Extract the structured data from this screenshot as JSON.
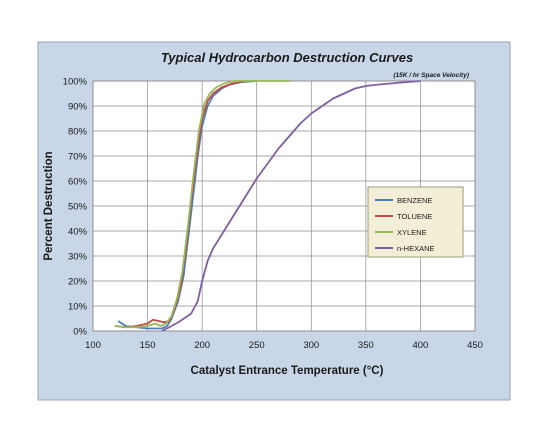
{
  "chart_data": {
    "type": "line",
    "title": "Typical Hydrocarbon Destruction Curves",
    "subtitle": "(15K / hr  Space Velocity)",
    "xlabel": "Catalyst Entrance Temperature (°C)",
    "ylabel": "Percent Destruction",
    "xlim": [
      100,
      450
    ],
    "ylim": [
      0,
      100
    ],
    "x_ticks": [
      100,
      150,
      200,
      250,
      300,
      350,
      400,
      450
    ],
    "x_tick_labels": [
      "100",
      "150",
      "200",
      "250",
      "300",
      "350",
      "400",
      "450"
    ],
    "y_ticks": [
      0,
      10,
      20,
      30,
      40,
      50,
      60,
      70,
      80,
      90,
      100
    ],
    "y_tick_labels": [
      "0%",
      "10%",
      "20%",
      "30%",
      "40%",
      "50%",
      "60%",
      "70%",
      "80%",
      "90%",
      "100%"
    ],
    "grid": true,
    "legend_position": "right",
    "colors": {
      "background": "#c9d6e8",
      "plot_area": "#ffffff",
      "legend_bg": "#f3efd6",
      "legend_border": "#a09a78"
    },
    "series": [
      {
        "name": "BENZENE",
        "color": "#4a7ebb",
        "points": [
          [
            123,
            4
          ],
          [
            130,
            2
          ],
          [
            140,
            1.5
          ],
          [
            150,
            1
          ],
          [
            158,
            1
          ],
          [
            163,
            1
          ],
          [
            168,
            2
          ],
          [
            172,
            5
          ],
          [
            178,
            12
          ],
          [
            183,
            22
          ],
          [
            188,
            40
          ],
          [
            192,
            55
          ],
          [
            196,
            70
          ],
          [
            200,
            82
          ],
          [
            205,
            90
          ],
          [
            210,
            94
          ],
          [
            218,
            97
          ],
          [
            225,
            98.5
          ],
          [
            235,
            99.5
          ],
          [
            250,
            100
          ]
        ]
      },
      {
        "name": "TOLUENE",
        "color": "#be4b48",
        "points": [
          [
            120,
            2
          ],
          [
            130,
            1.5
          ],
          [
            140,
            2
          ],
          [
            150,
            3
          ],
          [
            155,
            4.5
          ],
          [
            160,
            4
          ],
          [
            165,
            3.5
          ],
          [
            170,
            4
          ],
          [
            175,
            9
          ],
          [
            180,
            17
          ],
          [
            185,
            32
          ],
          [
            190,
            52
          ],
          [
            195,
            70
          ],
          [
            200,
            85
          ],
          [
            205,
            92
          ],
          [
            210,
            95
          ],
          [
            218,
            97.5
          ],
          [
            228,
            99
          ],
          [
            240,
            100
          ]
        ]
      },
      {
        "name": "XYLENE",
        "color": "#98b954",
        "points": [
          [
            120,
            2
          ],
          [
            130,
            1.5
          ],
          [
            140,
            1.5
          ],
          [
            150,
            2
          ],
          [
            157,
            3
          ],
          [
            162,
            2
          ],
          [
            167,
            3
          ],
          [
            172,
            6
          ],
          [
            177,
            13
          ],
          [
            182,
            24
          ],
          [
            187,
            42
          ],
          [
            192,
            62
          ],
          [
            197,
            80
          ],
          [
            202,
            91
          ],
          [
            207,
            95
          ],
          [
            213,
            97.5
          ],
          [
            220,
            99
          ],
          [
            230,
            100
          ],
          [
            280,
            100
          ]
        ]
      },
      {
        "name": "n-HEXANE",
        "color": "#7d60a0",
        "points": [
          [
            163,
            0
          ],
          [
            170,
            1.5
          ],
          [
            180,
            4
          ],
          [
            190,
            7
          ],
          [
            196,
            12
          ],
          [
            200,
            20
          ],
          [
            205,
            28
          ],
          [
            210,
            33
          ],
          [
            220,
            40
          ],
          [
            230,
            47
          ],
          [
            240,
            54
          ],
          [
            250,
            61
          ],
          [
            260,
            67
          ],
          [
            270,
            73
          ],
          [
            280,
            78
          ],
          [
            290,
            83
          ],
          [
            300,
            87
          ],
          [
            310,
            90
          ],
          [
            320,
            93
          ],
          [
            330,
            95
          ],
          [
            340,
            97
          ],
          [
            350,
            98
          ],
          [
            360,
            98.5
          ],
          [
            380,
            99.3
          ],
          [
            400,
            100
          ]
        ]
      }
    ]
  }
}
